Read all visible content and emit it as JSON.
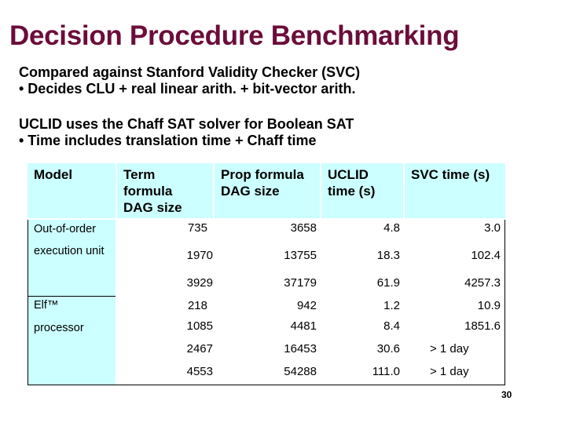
{
  "slide": {
    "title": "Decision Procedure Benchmarking",
    "para1": {
      "line1": "Compared against Stanford Validity Checker (SVC)",
      "line2": "• Decides CLU + real linear arith. + bit-vector arith."
    },
    "para2": {
      "line1": "UCLID uses the Chaff SAT solver for Boolean SAT",
      "line2": "• Time includes translation time + Chaff time"
    },
    "page_number": "30"
  },
  "table": {
    "headers": {
      "model": "Model",
      "term1": "Term",
      "term2": "formula",
      "term3": "DAG size",
      "prop1": "Prop formula",
      "prop2": "DAG size",
      "uclid1": "UCLID",
      "uclid2": "time (s)",
      "svc": "SVC time (s)"
    },
    "groups": [
      {
        "line1": "Out-of-order",
        "line2": "execution unit"
      },
      {
        "line1": "Elf™",
        "line2": "processor"
      }
    ],
    "rows": [
      {
        "term": "735",
        "prop": "3658",
        "uclid": "4.8",
        "svc": "3.0"
      },
      {
        "term": "1970",
        "prop": "13755",
        "uclid": "18.3",
        "svc": "102.4"
      },
      {
        "term": "3929",
        "prop": "37179",
        "uclid": "61.9",
        "svc": "4257.3"
      },
      {
        "term": "218",
        "prop": "942",
        "uclid": "1.2",
        "svc": "10.9"
      },
      {
        "term": "1085",
        "prop": "4481",
        "uclid": "8.4",
        "svc": "1851.6"
      },
      {
        "term": "2467",
        "prop": "16453",
        "uclid": "30.6",
        "svc": "> 1 day"
      },
      {
        "term": "4553",
        "prop": "54288",
        "uclid": "111.0",
        "svc": "> 1 day"
      }
    ]
  }
}
